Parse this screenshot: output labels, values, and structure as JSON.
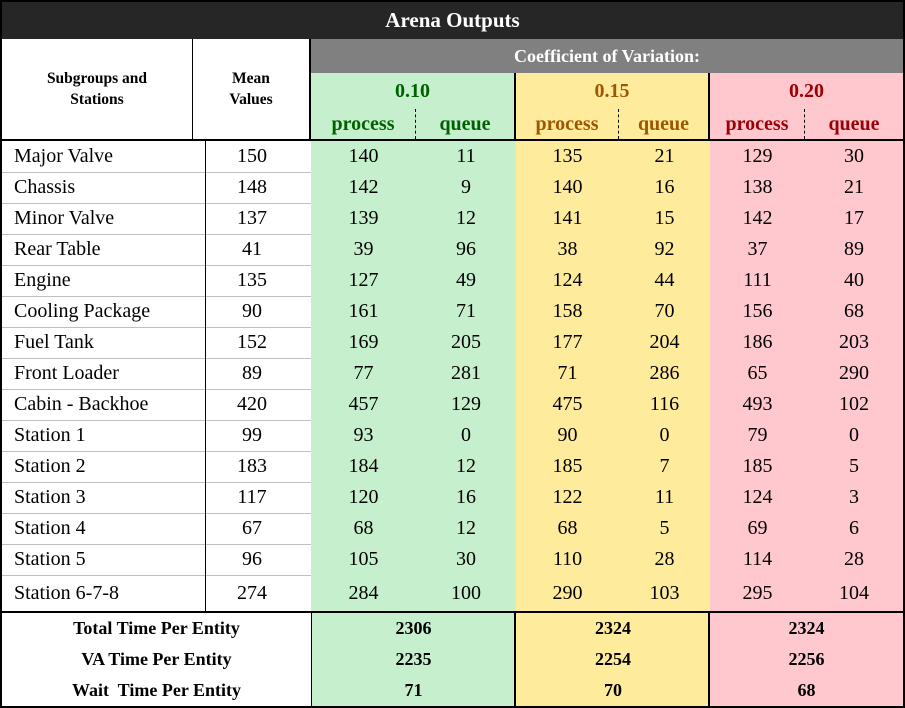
{
  "title": "Arena Outputs",
  "header": {
    "subgroups_label": "Subgroups and\nStations",
    "mean_label": "Mean\nValues",
    "cv_label": "Coefficient of Variation:",
    "groups": [
      {
        "value": "0.10",
        "color": "#c6efce",
        "text_color": "#006100"
      },
      {
        "value": "0.15",
        "color": "#ffeb9c",
        "text_color": "#9c5700"
      },
      {
        "value": "0.20",
        "color": "#ffc7ce",
        "text_color": "#9c0006"
      }
    ],
    "process_label": "process",
    "queue_label": "queue"
  },
  "rows": [
    {
      "name": "Major Valve",
      "mean": "150",
      "vals": [
        "140",
        "11",
        "135",
        "21",
        "129",
        "30"
      ]
    },
    {
      "name": "Chassis",
      "mean": "148",
      "vals": [
        "142",
        "9",
        "140",
        "16",
        "138",
        "21"
      ]
    },
    {
      "name": "Minor Valve",
      "mean": "137",
      "vals": [
        "139",
        "12",
        "141",
        "15",
        "142",
        "17"
      ]
    },
    {
      "name": "Rear Table",
      "mean": "41",
      "vals": [
        "39",
        "96",
        "38",
        "92",
        "37",
        "89"
      ]
    },
    {
      "name": "Engine",
      "mean": "135",
      "vals": [
        "127",
        "49",
        "124",
        "44",
        "111",
        "40"
      ]
    },
    {
      "name": "Cooling Package",
      "mean": "90",
      "vals": [
        "161",
        "71",
        "158",
        "70",
        "156",
        "68"
      ]
    },
    {
      "name": "Fuel Tank",
      "mean": "152",
      "vals": [
        "169",
        "205",
        "177",
        "204",
        "186",
        "203"
      ]
    },
    {
      "name": "Front Loader",
      "mean": "89",
      "vals": [
        "77",
        "281",
        "71",
        "286",
        "65",
        "290"
      ]
    },
    {
      "name": "Cabin - Backhoe",
      "mean": "420",
      "vals": [
        "457",
        "129",
        "475",
        "116",
        "493",
        "102"
      ]
    },
    {
      "name": "Station 1",
      "mean": "99",
      "vals": [
        "93",
        "0",
        "90",
        "0",
        "79",
        "0"
      ]
    },
    {
      "name": "Station 2",
      "mean": "183",
      "vals": [
        "184",
        "12",
        "185",
        "7",
        "185",
        "5"
      ]
    },
    {
      "name": "Station 3",
      "mean": "117",
      "vals": [
        "120",
        "16",
        "122",
        "11",
        "124",
        "3"
      ]
    },
    {
      "name": "Station 4",
      "mean": "67",
      "vals": [
        "68",
        "12",
        "68",
        "5",
        "69",
        "6"
      ]
    },
    {
      "name": "Station 5",
      "mean": "96",
      "vals": [
        "105",
        "30",
        "110",
        "28",
        "114",
        "28"
      ]
    },
    {
      "name": "Station 6-7-8",
      "mean": "274",
      "vals": [
        "284",
        "100",
        "290",
        "103",
        "295",
        "104"
      ]
    }
  ],
  "totals": [
    {
      "label": "Total Time Per Entity",
      "vals": [
        "2306",
        "2324",
        "2324"
      ]
    },
    {
      "label": "VA Time Per Entity",
      "vals": [
        "2235",
        "2254",
        "2256"
      ]
    },
    {
      "label": "Wait  Time Per Entity",
      "vals": [
        "71",
        "70",
        "68"
      ]
    }
  ]
}
